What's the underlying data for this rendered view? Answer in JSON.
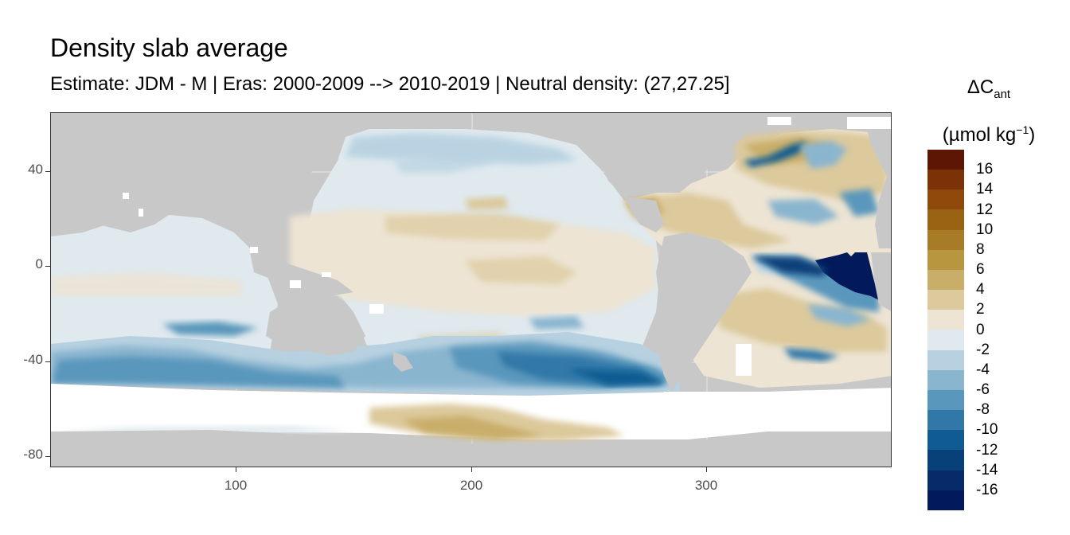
{
  "title": "Density slab average",
  "subtitle": "Estimate: JDM - M | Eras: 2000-2009 --> 2010-2019 | Neutral density: (27,27.25]",
  "legend": {
    "symbol": "ΔC",
    "subscript": "ant",
    "unit_open": "(µmol kg",
    "unit_sup": "−1",
    "unit_close": ")",
    "labels": [
      "16",
      "14",
      "12",
      "10",
      "8",
      "6",
      "4",
      "2",
      "0",
      "-2",
      "-4",
      "-6",
      "-8",
      "-10",
      "-12",
      "-14",
      "-16"
    ],
    "colors": [
      "#5e1604",
      "#7b3207",
      "#8f4a0b",
      "#9a6213",
      "#a87c26",
      "#b8963f",
      "#c9ae6a",
      "#dcc99c",
      "#ede4d3",
      "#dfe9ee",
      "#b7d1e1",
      "#8ab5cf",
      "#5a97bc",
      "#3178a8",
      "#105b92",
      "#084079",
      "#062b68",
      "#021a5c"
    ]
  },
  "axes": {
    "x_ticks": [
      "100",
      "200",
      "300"
    ],
    "y_ticks": [
      "40",
      "0",
      "-40",
      "-80"
    ]
  },
  "colors": {
    "land": "#c8c8c8",
    "no_data": "#ffffff",
    "panel_border": "#333333"
  }
}
